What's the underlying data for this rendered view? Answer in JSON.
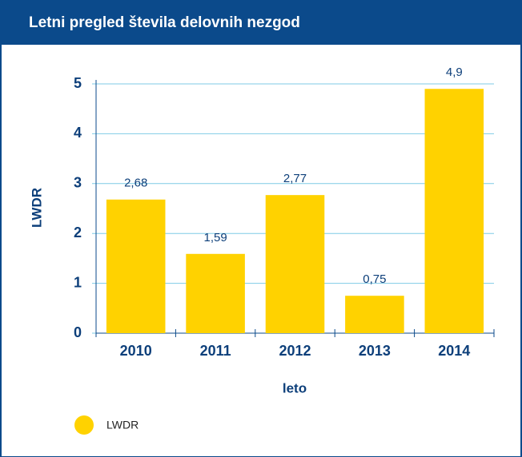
{
  "chart_data": {
    "type": "bar",
    "title": "Letni pregled števila delovnih nezgod",
    "x_label": "leto",
    "y_label": "LWDR",
    "categories": [
      "2010",
      "2011",
      "2012",
      "2013",
      "2014"
    ],
    "series": [
      {
        "name": "LWDR",
        "color": "#ffd200",
        "values": [
          2.68,
          1.59,
          2.77,
          0.75,
          4.9
        ],
        "value_labels": [
          "2,68",
          "1,59",
          "2,77",
          "0,75",
          "4,9"
        ]
      }
    ],
    "ylim": [
      0,
      5
    ],
    "yticks": [
      0,
      1,
      2,
      3,
      4,
      5
    ],
    "grid": true,
    "legend": "bottom-left"
  }
}
